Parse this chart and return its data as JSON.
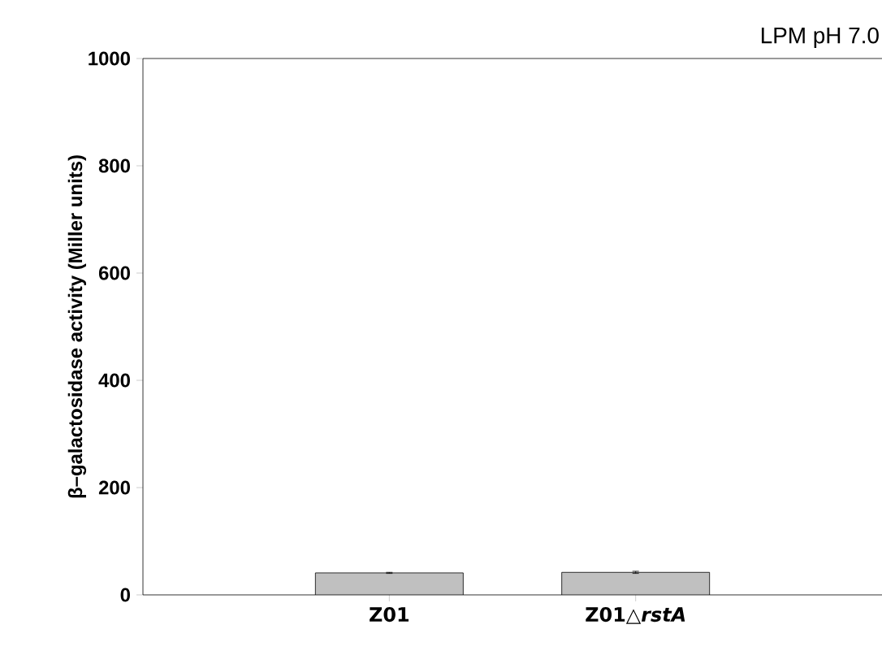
{
  "chart_data": {
    "type": "bar",
    "title": "LPM pH 7.0",
    "ylabel": "β–galactosidase activity (Miller units)",
    "categories": [
      "Z01",
      "Z01△*rstA*"
    ],
    "values": [
      41,
      42
    ],
    "errors": [
      1,
      2
    ],
    "color": "#c0c0c0",
    "ylim": [
      0,
      1000
    ],
    "yticks": [
      0,
      200,
      400,
      600,
      800,
      1000
    ]
  }
}
